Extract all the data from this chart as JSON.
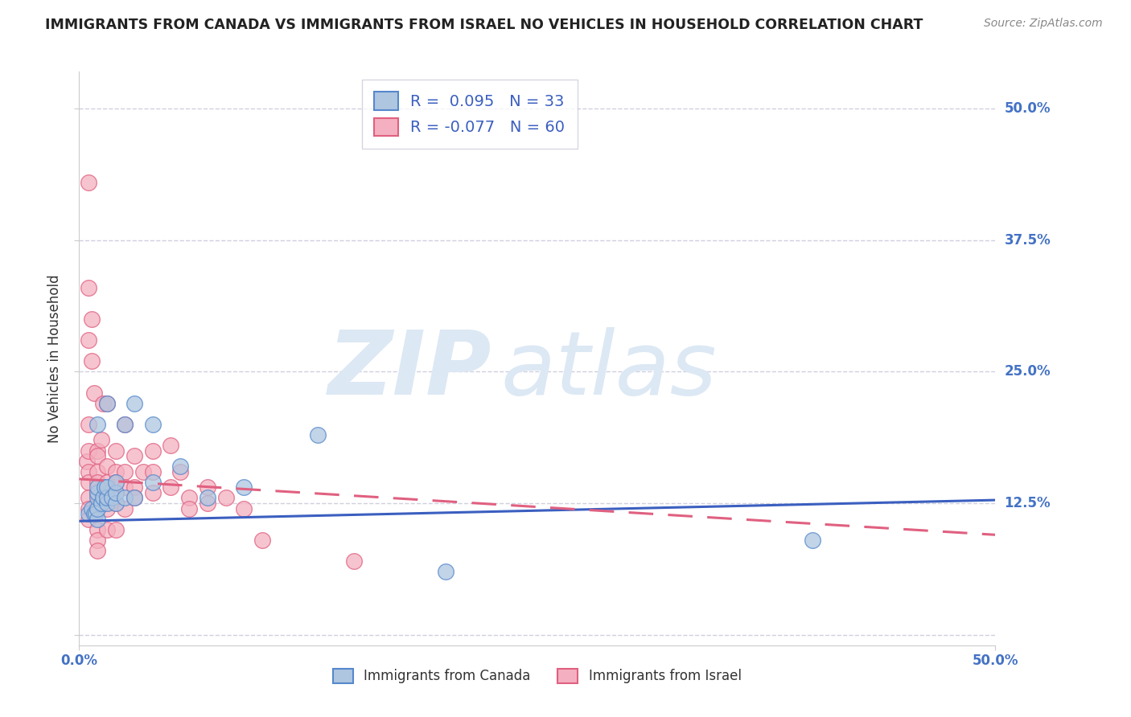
{
  "title": "IMMIGRANTS FROM CANADA VS IMMIGRANTS FROM ISRAEL NO VEHICLES IN HOUSEHOLD CORRELATION CHART",
  "source": "Source: ZipAtlas.com",
  "ylabel": "No Vehicles in Household",
  "x_label_canada": "Immigrants from Canada",
  "x_label_israel": "Immigrants from Israel",
  "xlim": [
    0.0,
    0.5
  ],
  "ylim": [
    -0.01,
    0.535
  ],
  "canada_R": 0.095,
  "canada_N": 33,
  "israel_R": -0.077,
  "israel_N": 60,
  "canada_scatter_color": "#aec6e0",
  "canada_edge_color": "#5588cc",
  "israel_scatter_color": "#f4b0c0",
  "israel_edge_color": "#e06080",
  "canada_line_color": "#3b5fc0",
  "israel_line_color": "#e06080",
  "watermark_zip": "ZIP",
  "watermark_atlas": "atlas",
  "watermark_color": "#dce8f4",
  "background_color": "#ffffff",
  "grid_color": "#d0d0e0",
  "tick_color": "#4472c4",
  "title_color": "#222222",
  "source_color": "#888888",
  "ylabel_color": "#333333",
  "font_size_title": 12.5,
  "font_size_ticks": 12,
  "font_size_legend_box": 14,
  "font_size_ylabel": 12,
  "font_size_source": 10,
  "font_size_watermark": 80,
  "canada_scatter_x": [
    0.005,
    0.007,
    0.008,
    0.009,
    0.01,
    0.01,
    0.01,
    0.01,
    0.01,
    0.01,
    0.012,
    0.013,
    0.014,
    0.015,
    0.015,
    0.015,
    0.015,
    0.018,
    0.02,
    0.02,
    0.02,
    0.025,
    0.025,
    0.03,
    0.03,
    0.04,
    0.04,
    0.055,
    0.07,
    0.09,
    0.13,
    0.2,
    0.4
  ],
  "canada_scatter_y": [
    0.115,
    0.12,
    0.115,
    0.115,
    0.11,
    0.12,
    0.13,
    0.135,
    0.14,
    0.2,
    0.125,
    0.13,
    0.14,
    0.125,
    0.13,
    0.14,
    0.22,
    0.13,
    0.125,
    0.135,
    0.145,
    0.13,
    0.2,
    0.22,
    0.13,
    0.145,
    0.2,
    0.16,
    0.13,
    0.14,
    0.19,
    0.06,
    0.09
  ],
  "israel_scatter_x": [
    0.004,
    0.005,
    0.005,
    0.005,
    0.005,
    0.005,
    0.005,
    0.005,
    0.005,
    0.005,
    0.005,
    0.007,
    0.007,
    0.008,
    0.01,
    0.01,
    0.01,
    0.01,
    0.01,
    0.01,
    0.01,
    0.01,
    0.01,
    0.01,
    0.012,
    0.013,
    0.015,
    0.015,
    0.015,
    0.015,
    0.015,
    0.015,
    0.015,
    0.02,
    0.02,
    0.02,
    0.02,
    0.02,
    0.025,
    0.025,
    0.025,
    0.025,
    0.03,
    0.03,
    0.03,
    0.035,
    0.04,
    0.04,
    0.04,
    0.05,
    0.05,
    0.055,
    0.06,
    0.06,
    0.07,
    0.07,
    0.08,
    0.09,
    0.1,
    0.15
  ],
  "israel_scatter_y": [
    0.165,
    0.43,
    0.33,
    0.28,
    0.2,
    0.175,
    0.155,
    0.145,
    0.13,
    0.12,
    0.11,
    0.3,
    0.26,
    0.23,
    0.175,
    0.17,
    0.155,
    0.145,
    0.135,
    0.125,
    0.12,
    0.1,
    0.09,
    0.08,
    0.185,
    0.22,
    0.22,
    0.16,
    0.145,
    0.135,
    0.125,
    0.12,
    0.1,
    0.175,
    0.155,
    0.145,
    0.125,
    0.1,
    0.2,
    0.155,
    0.14,
    0.12,
    0.17,
    0.14,
    0.13,
    0.155,
    0.175,
    0.155,
    0.135,
    0.18,
    0.14,
    0.155,
    0.13,
    0.12,
    0.14,
    0.125,
    0.13,
    0.12,
    0.09,
    0.07
  ],
  "y_ticks": [
    0.0,
    0.125,
    0.25,
    0.375,
    0.5
  ],
  "y_tick_labels": [
    "",
    "12.5%",
    "25.0%",
    "37.5%",
    "50.0%"
  ],
  "canada_line_x0": 0.0,
  "canada_line_y0": 0.108,
  "canada_line_x1": 0.5,
  "canada_line_y1": 0.128,
  "israel_line_x0": 0.0,
  "israel_line_y0": 0.148,
  "israel_line_x1": 0.5,
  "israel_line_y1": 0.095
}
